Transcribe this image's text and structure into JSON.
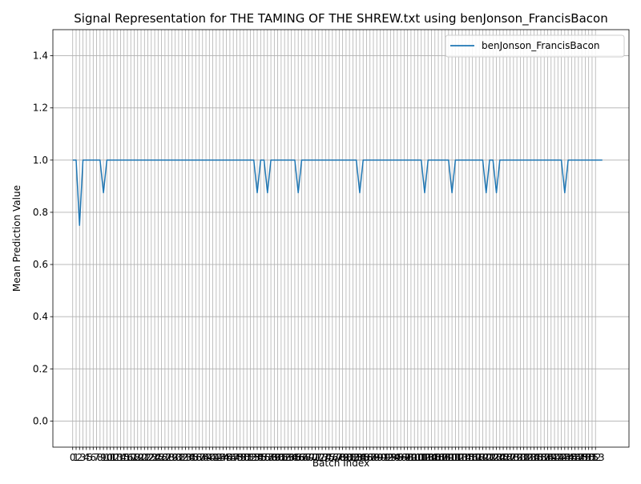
{
  "chart_data": {
    "type": "line",
    "title": "Signal Representation for THE TAMING OF THE SHREW.txt using benJonson_FrancisBacon",
    "xlabel": "Batch Index",
    "ylabel": "Mean Prediction Value",
    "xlim": [
      -5.8,
      162.8
    ],
    "ylim": [
      -0.1,
      1.5
    ],
    "grid": true,
    "legend_position": "top-right",
    "y_ticks": [
      0.0,
      0.2,
      0.4,
      0.6,
      0.8,
      1.0,
      1.2,
      1.4
    ],
    "y_tick_labels": [
      "0.0",
      "0.2",
      "0.4",
      "0.6",
      "0.8",
      "1.0",
      "1.2",
      "1.4"
    ],
    "x_ticks_shown": "every batch index 0–153",
    "series": [
      {
        "name": "benJonson_FrancisBacon",
        "color": "#1f77b4",
        "x_range": [
          0,
          153
        ],
        "baseline": 1.0,
        "values": [
          1.0,
          1.0,
          0.75,
          1.0,
          1.0,
          1.0,
          1.0,
          1.0,
          1.0,
          0.875,
          1.0,
          1.0,
          1.0,
          1.0,
          1.0,
          1.0,
          1.0,
          1.0,
          1.0,
          1.0,
          1.0,
          1.0,
          1.0,
          1.0,
          1.0,
          1.0,
          1.0,
          1.0,
          1.0,
          1.0,
          1.0,
          1.0,
          1.0,
          1.0,
          1.0,
          1.0,
          1.0,
          1.0,
          1.0,
          1.0,
          1.0,
          1.0,
          1.0,
          1.0,
          1.0,
          1.0,
          1.0,
          1.0,
          1.0,
          1.0,
          1.0,
          1.0,
          1.0,
          1.0,
          0.875,
          1.0,
          1.0,
          0.875,
          1.0,
          1.0,
          1.0,
          1.0,
          1.0,
          1.0,
          1.0,
          1.0,
          0.875,
          1.0,
          1.0,
          1.0,
          1.0,
          1.0,
          1.0,
          1.0,
          1.0,
          1.0,
          1.0,
          1.0,
          1.0,
          1.0,
          1.0,
          1.0,
          1.0,
          1.0,
          0.875,
          1.0,
          1.0,
          1.0,
          1.0,
          1.0,
          1.0,
          1.0,
          1.0,
          1.0,
          1.0,
          1.0,
          1.0,
          1.0,
          1.0,
          1.0,
          1.0,
          1.0,
          1.0,
          0.875,
          1.0,
          1.0,
          1.0,
          1.0,
          1.0,
          1.0,
          1.0,
          0.875,
          1.0,
          1.0,
          1.0,
          1.0,
          1.0,
          1.0,
          1.0,
          1.0,
          1.0,
          0.875,
          1.0,
          1.0,
          0.875,
          1.0,
          1.0,
          1.0,
          1.0,
          1.0,
          1.0,
          1.0,
          1.0,
          1.0,
          1.0,
          1.0,
          1.0,
          1.0,
          1.0,
          1.0,
          1.0,
          1.0,
          1.0,
          1.0,
          0.875,
          1.0,
          1.0,
          1.0,
          1.0,
          1.0,
          1.0,
          1.0,
          1.0,
          1.0,
          1.0,
          1.0
        ]
      }
    ]
  }
}
